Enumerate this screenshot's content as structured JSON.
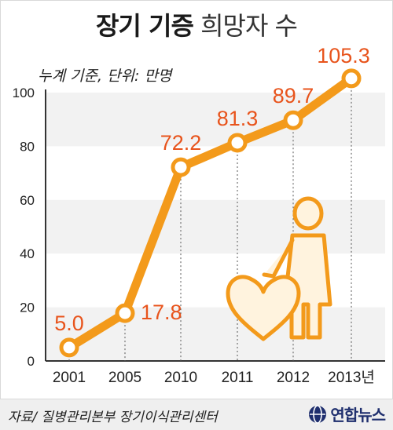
{
  "header": {
    "title_bold": "장기 기증",
    "title_light": "희망자 수",
    "subtitle": "누계 기준, 단위: 만명"
  },
  "footer": {
    "source": "자료/ 질병관리본부 장기이식관리센터",
    "logo_text": "연합뉴스"
  },
  "colors": {
    "line": "#f39a1b",
    "label": "#e8541c",
    "band": "#f2f2f2",
    "heart_fill": "#fff3de"
  },
  "chart_data": {
    "type": "line",
    "title": "장기 기증 희망자 수",
    "subtitle": "누계 기준, 단위: 만명",
    "categories": [
      "2001",
      "2005",
      "2010",
      "2011",
      "2012",
      "2013년"
    ],
    "series": [
      {
        "values": [
          5.0,
          17.8,
          72.2,
          81.3,
          89.7,
          105.3
        ],
        "labels": [
          "5.0",
          "17.8",
          "72.2",
          "81.3",
          "89.7",
          "105.3"
        ]
      }
    ],
    "ylim": [
      0,
      100
    ],
    "y_ticks": [
      "0",
      "20",
      "40",
      "60",
      "80",
      "100"
    ],
    "grid": "alternating bands",
    "xlabel": "",
    "ylabel": ""
  }
}
